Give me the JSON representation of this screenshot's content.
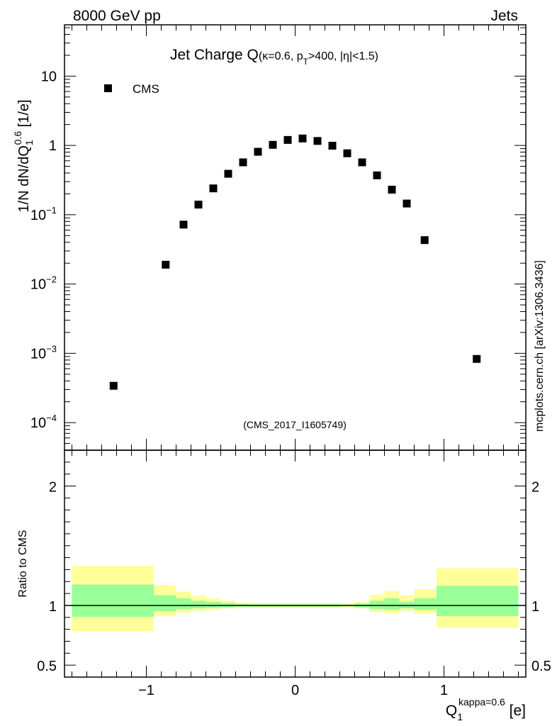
{
  "header": {
    "left": "8000 GeV pp",
    "right": "Jets",
    "side_note": "mcplots.cern.ch [arXiv:1306.3436]"
  },
  "plot": {
    "title_main": "Jet Charge Q",
    "title_paren_open": "(",
    "title_kappa": "κ=0.6, p",
    "title_sub_T": "T",
    "title_rest": ">400, |η|<1.5)",
    "analysis_tag": "(CMS_2017_I1605749)",
    "legend_label": "CMS",
    "ylabel_main": "1/N dN/dQ",
    "ylabel_sub": "1",
    "ylabel_sup": "0.6",
    "ylabel_unit": " [1/e]",
    "ratio_ylabel": "Ratio to CMS",
    "xlabel_main": "Q",
    "xlabel_sub": "1",
    "xlabel_sup": "kappa=0.6",
    "xlabel_unit": " [e]"
  },
  "chart_data": {
    "type": "scatter",
    "x_range": [
      -1.55,
      1.55
    ],
    "y_log": true,
    "y_range": [
      4e-05,
      55
    ],
    "x_ticks": [
      {
        "v": -1,
        "label": "−1"
      },
      {
        "v": 0,
        "label": "0"
      },
      {
        "v": 1,
        "label": "1"
      }
    ],
    "y_ticks": [
      {
        "v": 10,
        "base": "10",
        "exp": ""
      },
      {
        "v": 1,
        "base": "1",
        "exp": ""
      },
      {
        "v": 0.1,
        "base": "10",
        "exp": "−1"
      },
      {
        "v": 0.01,
        "base": "10",
        "exp": "−2"
      },
      {
        "v": 0.001,
        "base": "10",
        "exp": "−3"
      },
      {
        "v": 0.0001,
        "base": "10",
        "exp": "−4"
      }
    ],
    "series": [
      {
        "name": "CMS",
        "x": [
          -1.22,
          -0.87,
          -0.75,
          -0.65,
          -0.55,
          -0.45,
          -0.35,
          -0.25,
          -0.15,
          -0.05,
          0.05,
          0.15,
          0.25,
          0.35,
          0.45,
          0.55,
          0.65,
          0.75,
          0.87,
          1.22
        ],
        "y": [
          0.00034,
          0.019,
          0.072,
          0.14,
          0.24,
          0.39,
          0.57,
          0.81,
          1.02,
          1.2,
          1.26,
          1.16,
          0.99,
          0.77,
          0.57,
          0.37,
          0.23,
          0.145,
          0.043,
          0.00083
        ]
      }
    ],
    "ratio": {
      "y_range": [
        0.4,
        2.3
      ],
      "y_ticks": [
        {
          "v": 0.5,
          "label": "0.5"
        },
        {
          "v": 1,
          "label": "1"
        },
        {
          "v": 2,
          "label": "2"
        }
      ],
      "bins": [
        {
          "x0": -1.5,
          "x1": -0.95,
          "y1_lo": 0.785,
          "y1_hi": 1.33,
          "g_lo": 0.905,
          "g_hi": 1.175
        },
        {
          "x0": -0.95,
          "x1": -0.8,
          "y1_lo": 0.91,
          "y1_hi": 1.17,
          "g_lo": 0.95,
          "g_hi": 1.085
        },
        {
          "x0": -0.8,
          "x1": -0.7,
          "y1_lo": 0.94,
          "y1_hi": 1.115,
          "g_lo": 0.97,
          "g_hi": 1.06
        },
        {
          "x0": -0.7,
          "x1": -0.6,
          "y1_lo": 0.955,
          "y1_hi": 1.08,
          "g_lo": 0.975,
          "g_hi": 1.04
        },
        {
          "x0": -0.6,
          "x1": -0.5,
          "y1_lo": 0.965,
          "y1_hi": 1.06,
          "g_lo": 0.98,
          "g_hi": 1.03
        },
        {
          "x0": -0.5,
          "x1": -0.4,
          "y1_lo": 0.975,
          "y1_hi": 1.04,
          "g_lo": 0.985,
          "g_hi": 1.02
        },
        {
          "x0": -0.4,
          "x1": -0.3,
          "y1_lo": 0.98,
          "y1_hi": 1.025,
          "g_lo": 0.99,
          "g_hi": 1.012
        },
        {
          "x0": -0.3,
          "x1": -0.2,
          "y1_lo": 0.982,
          "y1_hi": 1.02,
          "g_lo": 0.99,
          "g_hi": 1.01
        },
        {
          "x0": -0.2,
          "x1": -0.1,
          "y1_lo": 0.982,
          "y1_hi": 1.02,
          "g_lo": 0.99,
          "g_hi": 1.01
        },
        {
          "x0": -0.1,
          "x1": 0.0,
          "y1_lo": 0.98,
          "y1_hi": 1.02,
          "g_lo": 0.99,
          "g_hi": 1.01
        },
        {
          "x0": 0.0,
          "x1": 0.1,
          "y1_lo": 0.98,
          "y1_hi": 1.02,
          "g_lo": 0.99,
          "g_hi": 1.01
        },
        {
          "x0": 0.1,
          "x1": 0.2,
          "y1_lo": 0.982,
          "y1_hi": 1.02,
          "g_lo": 0.99,
          "g_hi": 1.01
        },
        {
          "x0": 0.2,
          "x1": 0.3,
          "y1_lo": 0.982,
          "y1_hi": 1.02,
          "g_lo": 0.99,
          "g_hi": 1.01
        },
        {
          "x0": 0.3,
          "x1": 0.4,
          "y1_lo": 0.985,
          "y1_hi": 1.018,
          "g_lo": 0.992,
          "g_hi": 1.008
        },
        {
          "x0": 0.4,
          "x1": 0.5,
          "y1_lo": 0.975,
          "y1_hi": 1.03,
          "g_lo": 0.985,
          "g_hi": 1.015
        },
        {
          "x0": 0.5,
          "x1": 0.6,
          "y1_lo": 0.945,
          "y1_hi": 1.09,
          "g_lo": 0.97,
          "g_hi": 1.04
        },
        {
          "x0": 0.6,
          "x1": 0.7,
          "y1_lo": 0.935,
          "y1_hi": 1.12,
          "g_lo": 0.965,
          "g_hi": 1.06
        },
        {
          "x0": 0.7,
          "x1": 0.8,
          "y1_lo": 0.955,
          "y1_hi": 1.085,
          "g_lo": 0.975,
          "g_hi": 1.03
        },
        {
          "x0": 0.8,
          "x1": 0.95,
          "y1_lo": 0.935,
          "y1_hi": 1.135,
          "g_lo": 0.965,
          "g_hi": 1.06
        },
        {
          "x0": 0.95,
          "x1": 1.5,
          "y1_lo": 0.81,
          "y1_hi": 1.31,
          "g_lo": 0.91,
          "g_hi": 1.165
        }
      ],
      "reference": 1
    },
    "colors": {
      "outer_band": "#ffff99",
      "inner_band": "#99ff99",
      "marker": "#000000",
      "tag": "#999999",
      "side_note": "#999999"
    }
  }
}
